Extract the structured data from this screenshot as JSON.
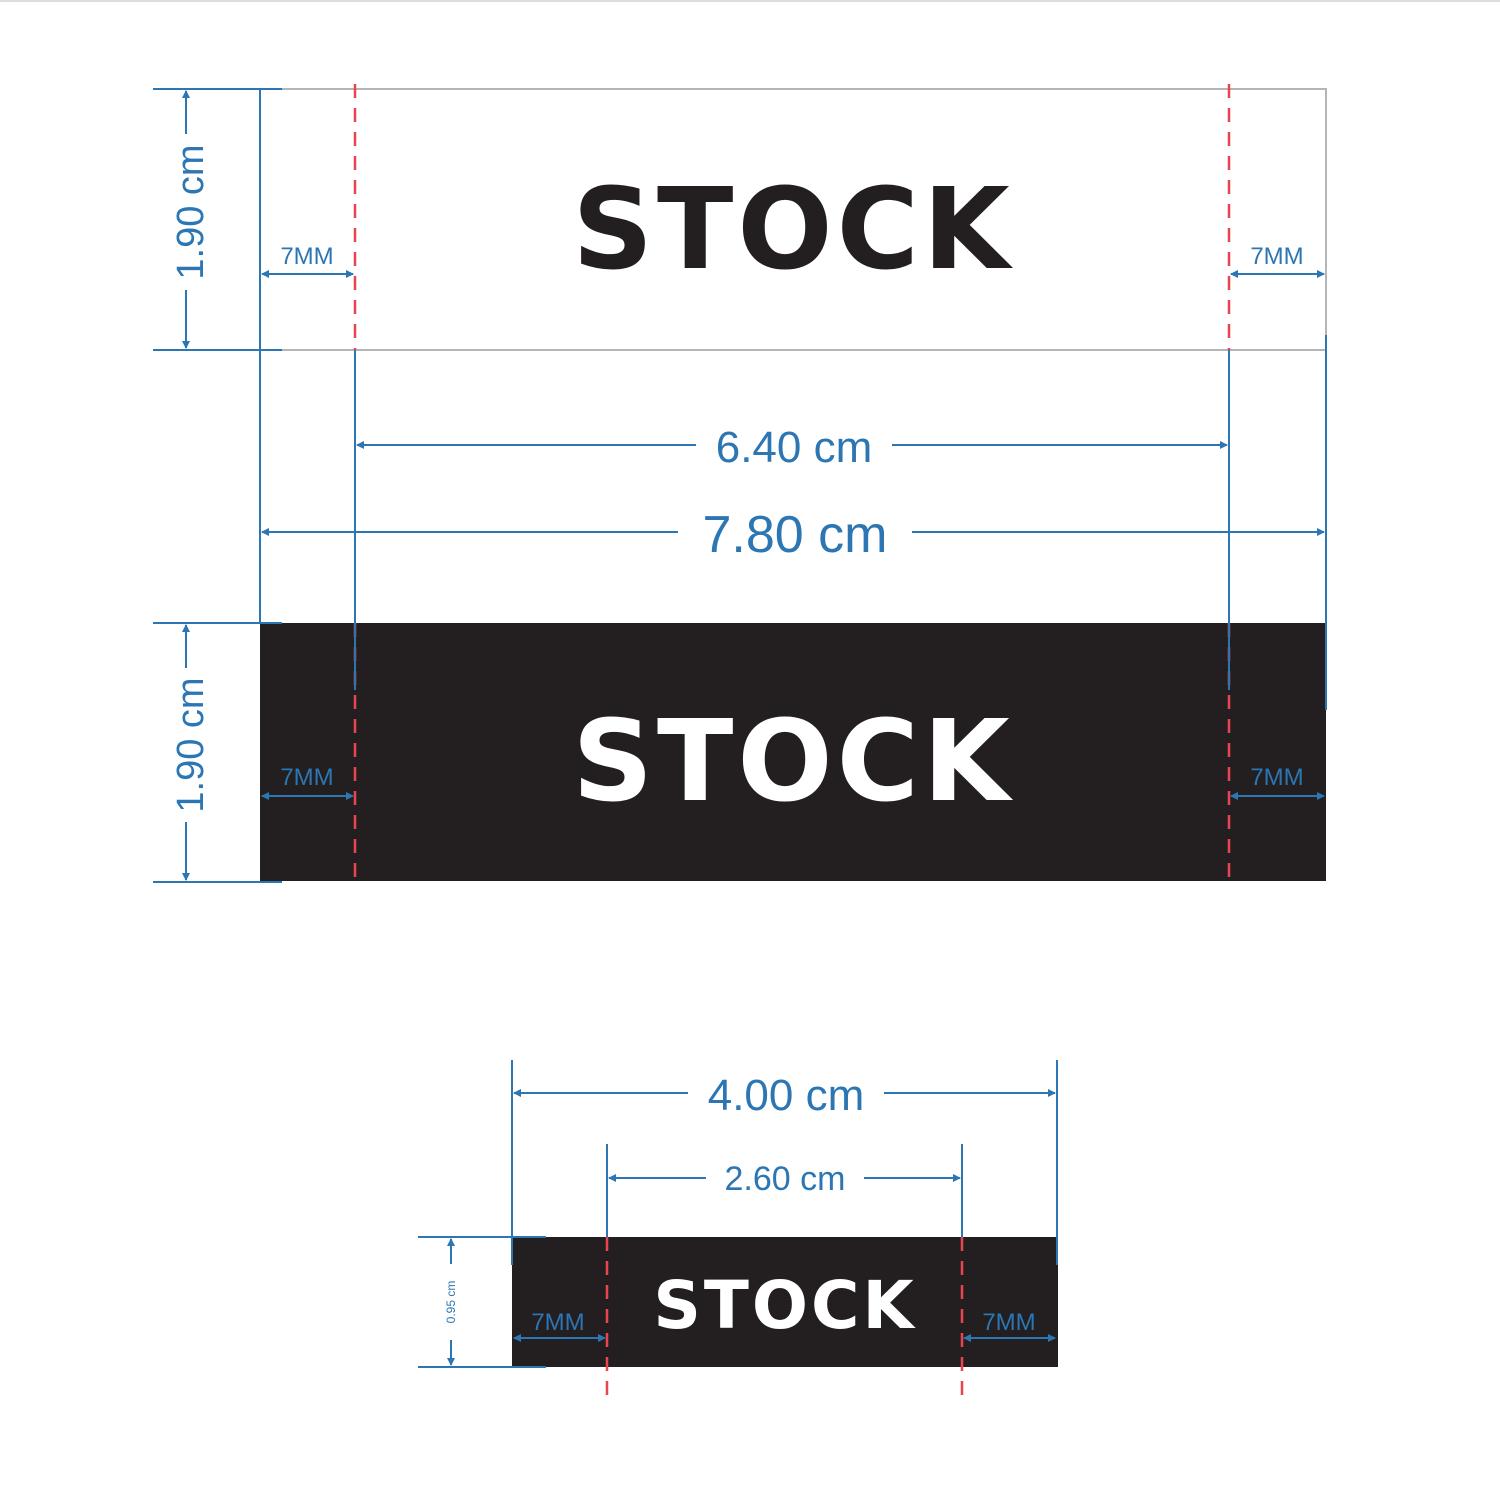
{
  "colors": {
    "dimension": "#2b76b3",
    "guide": "#e8454e",
    "label_dark": "#231f20",
    "label_light": "#ffffff",
    "outline": "#b5b5b5"
  },
  "top_label": {
    "logo": "STOCK",
    "height": "1.90 cm",
    "margin_left": "7MM",
    "margin_right": "7MM"
  },
  "widths": {
    "inner": "6.40 cm",
    "outer": "7.80 cm"
  },
  "bottom_label": {
    "logo": "STOCK",
    "height": "1.90 cm",
    "margin_left": "7MM",
    "margin_right": "7MM"
  },
  "small_label": {
    "logo": "STOCK",
    "outer_width": "4.00 cm",
    "inner_width": "2.60 cm",
    "height": "0.95 cm",
    "margin_left": "7MM",
    "margin_right": "7MM"
  }
}
